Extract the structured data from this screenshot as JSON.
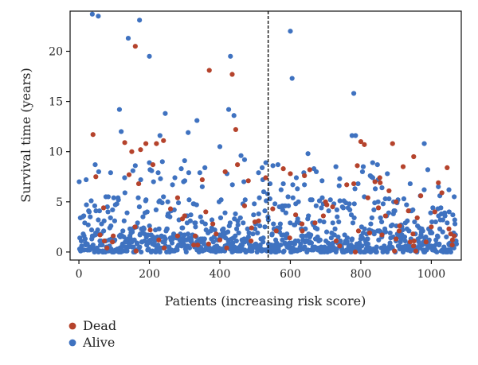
{
  "chart_data": {
    "type": "scatter",
    "title": "",
    "xlabel": "Patients (increasing risk score)",
    "ylabel": "Survival time (years)",
    "xlim": [
      -25,
      1085
    ],
    "ylim": [
      -0.8,
      24
    ],
    "x_ticks": [
      0,
      200,
      400,
      600,
      800,
      1000
    ],
    "y_ticks": [
      0,
      5,
      10,
      15,
      20
    ],
    "cutoff_x": 537,
    "grid": false,
    "legend_position": "bottom-left",
    "colors": {
      "dead": "#b5432c",
      "alive": "#3f72c0"
    },
    "point_count": 1072,
    "series": [
      {
        "name": "Dead",
        "points": [
          [
            40,
            11.7
          ],
          [
            48,
            7.5
          ],
          [
            60,
            1.7
          ],
          [
            70,
            4.4
          ],
          [
            95,
            1.0
          ],
          [
            130,
            10.9
          ],
          [
            150,
            10.0
          ],
          [
            160,
            20.5
          ],
          [
            175,
            10.2
          ],
          [
            190,
            10.8
          ],
          [
            210,
            8.7
          ],
          [
            220,
            10.8
          ],
          [
            240,
            11.1
          ],
          [
            260,
            4.3
          ],
          [
            280,
            5.4
          ],
          [
            300,
            3.6
          ],
          [
            330,
            1.6
          ],
          [
            350,
            7.2
          ],
          [
            360,
            4.0
          ],
          [
            370,
            18.1
          ],
          [
            380,
            2.8
          ],
          [
            400,
            1.2
          ],
          [
            415,
            8.0
          ],
          [
            435,
            17.7
          ],
          [
            445,
            12.2
          ],
          [
            450,
            8.7
          ],
          [
            470,
            4.6
          ],
          [
            490,
            2.4
          ],
          [
            510,
            3.1
          ],
          [
            530,
            7.4
          ],
          [
            550,
            4.3
          ],
          [
            560,
            2.1
          ],
          [
            580,
            8.3
          ],
          [
            600,
            7.8
          ],
          [
            615,
            3.7
          ],
          [
            640,
            7.6
          ],
          [
            655,
            8.2
          ],
          [
            670,
            2.9
          ],
          [
            700,
            5.0
          ],
          [
            720,
            4.5
          ],
          [
            730,
            1.1
          ],
          [
            760,
            6.7
          ],
          [
            780,
            6.8
          ],
          [
            790,
            8.6
          ],
          [
            800,
            11.0
          ],
          [
            810,
            10.7
          ],
          [
            820,
            5.4
          ],
          [
            825,
            1.9
          ],
          [
            840,
            7.0
          ],
          [
            850,
            4.4
          ],
          [
            855,
            6.9
          ],
          [
            860,
            1.7
          ],
          [
            870,
            3.6
          ],
          [
            880,
            6.1
          ],
          [
            890,
            10.8
          ],
          [
            900,
            5.0
          ],
          [
            910,
            2.6
          ],
          [
            920,
            8.5
          ],
          [
            935,
            4.1
          ],
          [
            940,
            1.0
          ],
          [
            950,
            9.5
          ],
          [
            960,
            3.4
          ],
          [
            970,
            5.6
          ],
          [
            985,
            1.0
          ],
          [
            1000,
            2.5
          ],
          [
            1010,
            4.0
          ],
          [
            1020,
            6.9
          ],
          [
            1030,
            5.9
          ],
          [
            1045,
            8.4
          ],
          [
            1050,
            2.3
          ],
          [
            1055,
            1.8
          ],
          [
            1060,
            1.2
          ],
          [
            1065,
            1.6
          ]
        ]
      },
      {
        "name": "Alive",
        "points": [
          [
            38,
            23.7
          ],
          [
            55,
            23.5
          ],
          [
            140,
            21.3
          ],
          [
            172,
            23.1
          ],
          [
            200,
            19.5
          ],
          [
            430,
            19.5
          ],
          [
            600,
            22.0
          ],
          [
            605,
            17.3
          ],
          [
            780,
            15.8
          ],
          [
            115,
            14.2
          ],
          [
            245,
            13.8
          ],
          [
            335,
            13.1
          ],
          [
            425,
            14.2
          ],
          [
            440,
            13.6
          ],
          [
            460,
            9.6
          ],
          [
            470,
            9.2
          ],
          [
            650,
            9.8
          ],
          [
            980,
            10.8
          ],
          [
            775,
            11.6
          ],
          [
            785,
            11.6
          ],
          [
            230,
            11.6
          ],
          [
            310,
            11.9
          ],
          [
            400,
            10.5
          ],
          [
            120,
            12.0
          ],
          [
            90,
            7.9
          ],
          [
            160,
            8.6
          ],
          [
            200,
            8.9
          ],
          [
            300,
            9.1
          ],
          [
            350,
            6.5
          ],
          [
            520,
            8.4
          ],
          [
            580,
            6.8
          ],
          [
            620,
            6.3
          ],
          [
            690,
            7.1
          ],
          [
            740,
            7.3
          ],
          [
            830,
            7.5
          ],
          [
            860,
            6.4
          ],
          [
            880,
            5.3
          ],
          [
            940,
            6.8
          ],
          [
            990,
            8.2
          ],
          [
            1020,
            6.5
          ],
          [
            1050,
            6.2
          ],
          [
            1065,
            5.5
          ]
        ]
      }
    ]
  }
}
